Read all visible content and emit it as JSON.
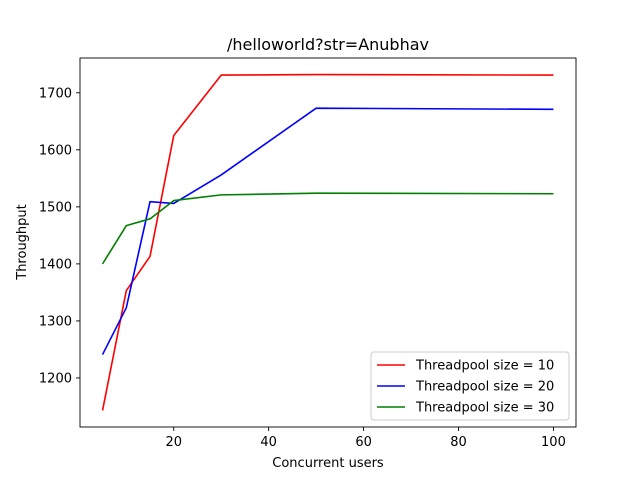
{
  "chart_data": {
    "type": "line",
    "title": "/helloworld?str=Anubhav",
    "xlabel": "Concurrent users",
    "ylabel": "Throughput",
    "xlim": [
      0.25,
      104.75
    ],
    "ylim": [
      1114,
      1761
    ],
    "xticks": [
      20,
      40,
      60,
      80,
      100
    ],
    "yticks": [
      1200,
      1300,
      1400,
      1500,
      1600,
      1700
    ],
    "grid": false,
    "legend_position": "lower right",
    "series": [
      {
        "name": "Threadpool size = 10",
        "color": "#ff0000",
        "x": [
          5,
          10,
          15,
          20,
          30,
          50,
          100
        ],
        "y": [
          1143,
          1353,
          1413,
          1625,
          1731,
          1732,
          1731
        ]
      },
      {
        "name": "Threadpool size = 20",
        "color": "#0000ff",
        "x": [
          5,
          10,
          15,
          20,
          30,
          50,
          100
        ],
        "y": [
          1241,
          1323,
          1509,
          1506,
          1556,
          1673,
          1671
        ]
      },
      {
        "name": "Threadpool size = 30",
        "color": "#008000",
        "x": [
          5,
          10,
          15,
          20,
          30,
          50,
          100
        ],
        "y": [
          1400,
          1467,
          1479,
          1511,
          1521,
          1524,
          1523
        ]
      }
    ]
  }
}
